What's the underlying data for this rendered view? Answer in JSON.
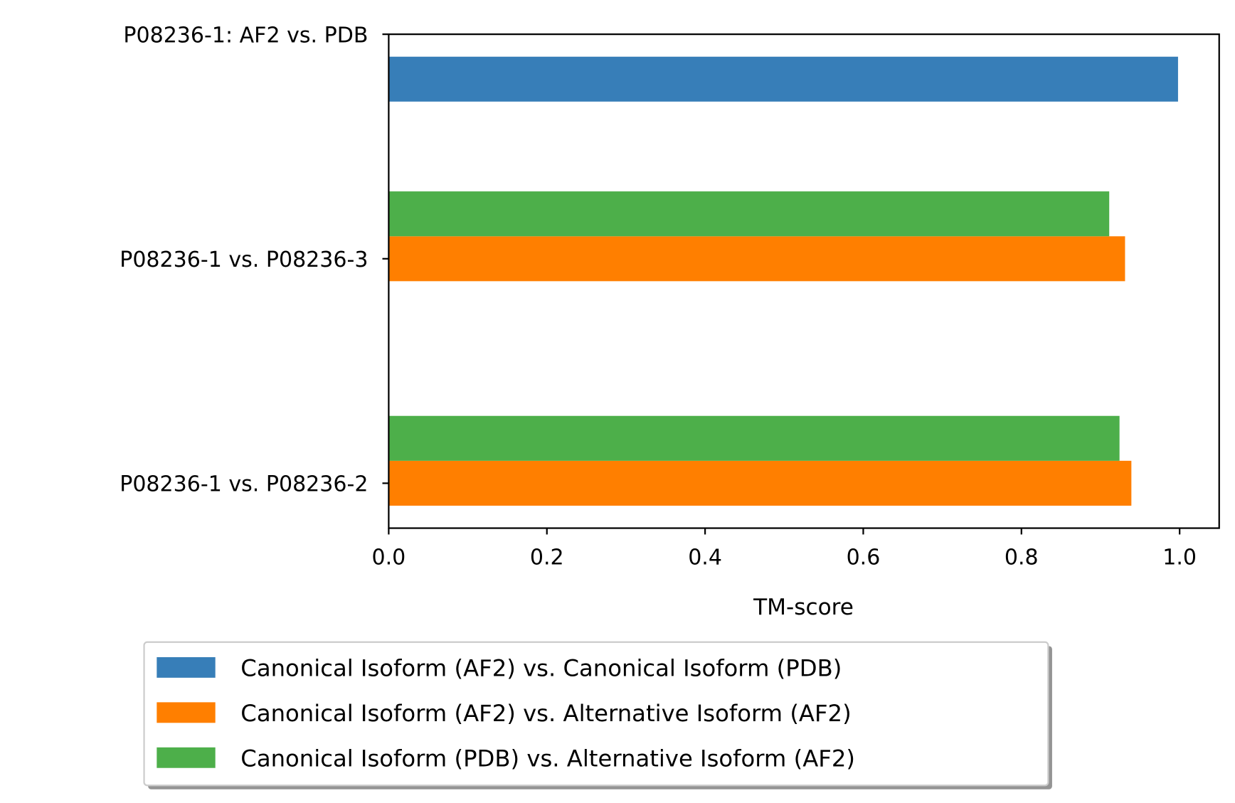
{
  "chart_data": {
    "type": "bar",
    "orientation": "horizontal",
    "categories": [
      "P08236-1 vs. P08236-2",
      "P08236-1 vs. P08236-3",
      "P08236-1: AF2 vs. PDB"
    ],
    "series": [
      {
        "name": "Canonical Isoform (AF2) vs. Canonical Isoform (PDB)",
        "color": "#377eb8",
        "values": [
          null,
          null,
          0.998
        ]
      },
      {
        "name": "Canonical Isoform (AF2) vs. Alternative Isoform (AF2)",
        "color": "#ff7f00",
        "values": [
          0.939,
          0.931,
          null
        ]
      },
      {
        "name": "Canonical Isoform (PDB) vs. Alternative Isoform (AF2)",
        "color": "#4daf4a",
        "values": [
          0.924,
          0.911,
          null
        ]
      }
    ],
    "title": "",
    "xlabel": "TM-score",
    "ylabel": "",
    "xlim": [
      0,
      1.05
    ],
    "xticks": [
      "0.0",
      "0.2",
      "0.4",
      "0.6",
      "0.8",
      "1.0"
    ],
    "grid": false,
    "legend_position": "bottom"
  }
}
